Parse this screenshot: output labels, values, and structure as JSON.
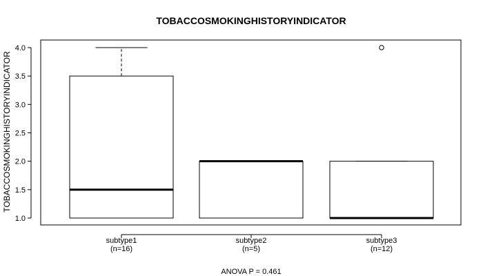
{
  "chart_data": {
    "type": "boxplot",
    "title": "TOBACCOSMOKINGHISTORYINDICATOR",
    "ylabel": "TOBACCOSMOKINGHISTORYINDICATOR",
    "xlabel": "",
    "ylim": [
      0.9,
      4.1
    ],
    "yticks": [
      1.0,
      1.5,
      2.0,
      2.5,
      3.0,
      3.5,
      4.0
    ],
    "ytick_labels": [
      "1.0",
      "1.5",
      "2.0",
      "2.5",
      "3.0",
      "3.5",
      "4.0"
    ],
    "categories": [
      "subtype1",
      "subtype2",
      "subtype3"
    ],
    "counts": [
      "(n=16)",
      "(n=5)",
      "(n=12)"
    ],
    "boxes": [
      {
        "name": "subtype1",
        "q1": 1.0,
        "median": 1.5,
        "q3": 3.5,
        "whisker_low": 1.0,
        "whisker_high": 4.0,
        "outliers": []
      },
      {
        "name": "subtype2",
        "q1": 1.0,
        "median": 2.0,
        "q3": 2.0,
        "whisker_low": 1.0,
        "whisker_high": 2.0,
        "outliers": []
      },
      {
        "name": "subtype3",
        "q1": 1.0,
        "median": 1.0,
        "q3": 2.0,
        "whisker_low": 1.0,
        "whisker_high": 2.0,
        "outliers": [
          4.0
        ]
      }
    ],
    "footnote": "ANOVA P = 0.461"
  }
}
